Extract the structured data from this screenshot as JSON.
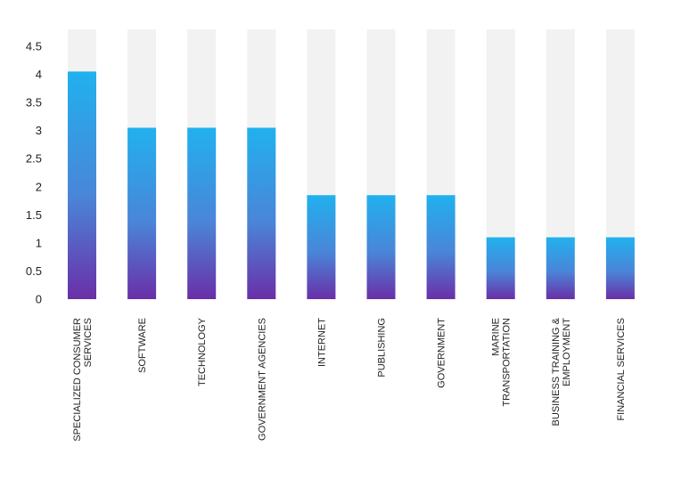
{
  "chart_data": {
    "type": "bar",
    "categories": [
      [
        "SPECIALIZED CONSUMER",
        "SERVICES"
      ],
      [
        "SOFTWARE"
      ],
      [
        "TECHNOLOGY"
      ],
      [
        "GOVERNMENT AGENCIES"
      ],
      [
        "INTERNET"
      ],
      [
        "PUBLISHING"
      ],
      [
        "GOVERNMENT"
      ],
      [
        "MARINE",
        "TRANSPORTATION"
      ],
      [
        "BUSINESS TRAINING &",
        "EMPLOYMENT"
      ],
      [
        "FINANCIAL SERVICES"
      ]
    ],
    "values": [
      4.05,
      3.05,
      3.05,
      3.05,
      1.85,
      1.85,
      1.85,
      1.1,
      1.1,
      1.1
    ],
    "ylim": [
      0,
      4.8
    ],
    "yticks": [
      "0",
      "0.5",
      "1",
      "1.5",
      "2",
      "2.5",
      "3",
      "3.5",
      "4",
      "4.5"
    ],
    "ytick_values": [
      0,
      0.5,
      1,
      1.5,
      2,
      2.5,
      3,
      3.5,
      4,
      4.5
    ],
    "grid": false,
    "colors": {
      "bar_top": "#21b1ee",
      "bar_mid": "#4a85d8",
      "bar_bottom": "#6a2fa8",
      "background_bar": "#f2f2f2"
    }
  }
}
